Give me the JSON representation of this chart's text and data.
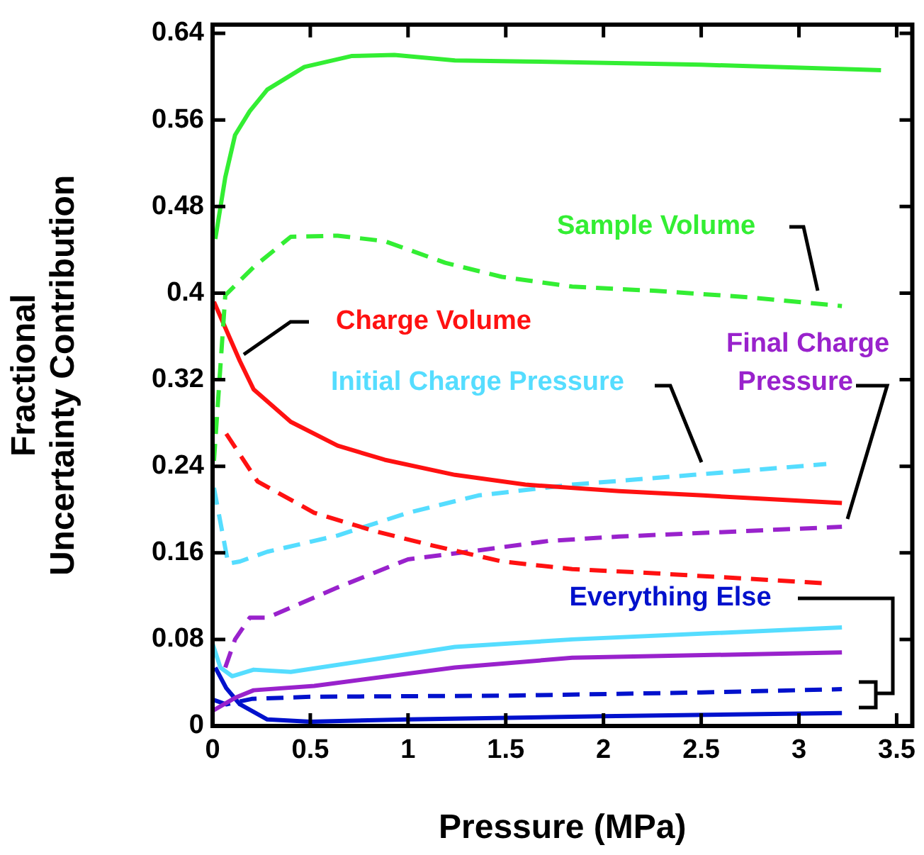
{
  "chart_data": {
    "type": "line",
    "xlabel": "Pressure (MPa)",
    "ylabel": "Fractional Uncertainty Contribution",
    "legend": false,
    "marker": "none",
    "xlim": [
      0,
      3.58
    ],
    "ylim": [
      0,
      0.648
    ],
    "xticks": [
      0,
      0.5,
      1,
      1.5,
      2,
      2.5,
      3,
      3.5
    ],
    "yticks": [
      0,
      0.08,
      0.16,
      0.24,
      0.32,
      0.4,
      0.48,
      0.56,
      0.64
    ],
    "series": [
      {
        "color": "#33ee33",
        "line_style": "solid",
        "x": [
          0.014,
          0.065,
          0.115,
          0.19,
          0.28,
          0.47,
          0.71,
          0.93,
          1.24,
          1.6,
          2.5,
          3.42
        ],
        "values": [
          0.45,
          0.507,
          0.546,
          0.568,
          0.588,
          0.609,
          0.619,
          0.62,
          0.615,
          0.614,
          0.611,
          0.606
        ]
      },
      {
        "name": "Sample Volume",
        "color": "#33ee33",
        "line_style": "dashed",
        "x": [
          0.007,
          0.065,
          0.21,
          0.4,
          0.64,
          0.88,
          1.19,
          1.48,
          1.84,
          2.27,
          2.75,
          3.22
        ],
        "values": [
          0.245,
          0.398,
          0.424,
          0.452,
          0.453,
          0.448,
          0.428,
          0.415,
          0.406,
          0.402,
          0.396,
          0.388
        ]
      },
      {
        "name": "Charge Volume",
        "color": "#ff1111",
        "line_style": "solid",
        "x": [
          0.007,
          0.14,
          0.21,
          0.4,
          0.64,
          0.88,
          1.24,
          1.6,
          2.08,
          2.51,
          3.22
        ],
        "values": [
          0.392,
          0.337,
          0.311,
          0.281,
          0.259,
          0.246,
          0.232,
          0.223,
          0.217,
          0.213,
          0.206
        ]
      },
      {
        "color": "#ff1111",
        "line_style": "dashed",
        "x": [
          0.07,
          0.23,
          0.52,
          0.83,
          1.12,
          1.48,
          1.84,
          2.27,
          3.12
        ],
        "values": [
          0.27,
          0.226,
          0.197,
          0.18,
          0.167,
          0.152,
          0.145,
          0.141,
          0.132
        ]
      },
      {
        "color": "#55ddff",
        "line_style": "solid",
        "x": [
          0,
          0.04,
          0.1,
          0.21,
          0.4,
          0.88,
          1.24,
          1.84,
          3.22
        ],
        "values": [
          0.076,
          0.054,
          0.046,
          0.052,
          0.05,
          0.063,
          0.073,
          0.08,
          0.091
        ]
      },
      {
        "name": "Initial Charge Pressure",
        "color": "#55ddff",
        "line_style": "dashed",
        "x": [
          0.007,
          0.08,
          0.14,
          0.28,
          0.64,
          1,
          1.36,
          1.84,
          2.46,
          3.14
        ],
        "values": [
          0.22,
          0.15,
          0.152,
          0.161,
          0.176,
          0.197,
          0.213,
          0.223,
          0.232,
          0.242
        ]
      },
      {
        "color": "#9922cc",
        "line_style": "solid",
        "x": [
          0,
          0.115,
          0.21,
          0.52,
          1.24,
          1.84,
          3.22
        ],
        "values": [
          0.014,
          0.026,
          0.033,
          0.037,
          0.054,
          0.063,
          0.068
        ]
      },
      {
        "name": "Final Charge Pressure",
        "color": "#9922cc",
        "line_style": "dashed",
        "x": [
          0.065,
          0.115,
          0.19,
          0.28,
          0.64,
          1,
          1.31,
          1.72,
          2.08,
          3.22
        ],
        "values": [
          0.054,
          0.08,
          0.1,
          0.1,
          0.128,
          0.154,
          0.161,
          0.171,
          0.175,
          0.184
        ]
      },
      {
        "color": "#0011cc",
        "line_style": "solid",
        "x": [
          0.014,
          0.07,
          0.14,
          0.28,
          0.5,
          1,
          2,
          3.22
        ],
        "values": [
          0.054,
          0.035,
          0.02,
          0.006,
          0.004,
          0.006,
          0.009,
          0.012
        ]
      },
      {
        "name": "Everything Else",
        "color": "#0011cc",
        "line_style": "dashed",
        "x": [
          0.007,
          0.07,
          0.2,
          0.5,
          1.5,
          2.5,
          3.22
        ],
        "values": [
          0.024,
          0.02,
          0.025,
          0.027,
          0.028,
          0.031,
          0.034
        ]
      }
    ]
  }
}
